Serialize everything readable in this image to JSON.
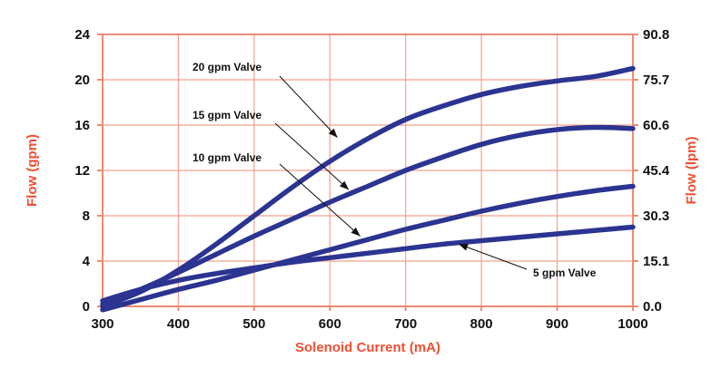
{
  "chart_data": {
    "type": "line",
    "xlabel": "Solenoid Current (mA)",
    "ylabel": "Flow (gpm)",
    "y2label": "Flow (lpm)",
    "xlim": [
      300,
      1000
    ],
    "ylim": [
      0,
      24
    ],
    "x_ticks": [
      "300",
      "400",
      "500",
      "600",
      "700",
      "800",
      "900",
      "1000"
    ],
    "y_ticks": [
      "0",
      "4",
      "8",
      "12",
      "16",
      "20",
      "24"
    ],
    "y2_ticks": [
      "0.0",
      "15.1",
      "30.3",
      "45.4",
      "60.6",
      "75.7",
      "90.8"
    ],
    "grid": true,
    "series": [
      {
        "name": "20 gpm Valve",
        "x": [
          300,
          350,
          400,
          450,
          500,
          550,
          600,
          650,
          700,
          750,
          800,
          850,
          900,
          950,
          1000
        ],
        "y": [
          0,
          1.3,
          3.2,
          5.5,
          8.0,
          10.5,
          12.8,
          14.8,
          16.5,
          17.7,
          18.7,
          19.4,
          19.9,
          20.3,
          21.0
        ]
      },
      {
        "name": "15 gpm Valve",
        "x": [
          300,
          350,
          400,
          450,
          500,
          550,
          600,
          650,
          700,
          750,
          800,
          850,
          900,
          950,
          1000
        ],
        "y": [
          0.2,
          1.5,
          3.0,
          4.6,
          6.2,
          7.7,
          9.2,
          10.6,
          12.0,
          13.2,
          14.3,
          15.1,
          15.6,
          15.8,
          15.7
        ]
      },
      {
        "name": "10 gpm Valve",
        "x": [
          300,
          350,
          400,
          450,
          500,
          550,
          600,
          650,
          700,
          750,
          800,
          850,
          900,
          950,
          1000
        ],
        "y": [
          -0.3,
          0.6,
          1.5,
          2.3,
          3.2,
          4.1,
          5.0,
          5.9,
          6.8,
          7.6,
          8.4,
          9.1,
          9.7,
          10.2,
          10.6
        ]
      },
      {
        "name": "5 gpm Valve",
        "x": [
          300,
          350,
          400,
          450,
          500,
          550,
          600,
          650,
          700,
          750,
          800,
          850,
          900,
          950,
          1000
        ],
        "y": [
          0.5,
          1.5,
          2.3,
          2.9,
          3.4,
          3.9,
          4.3,
          4.7,
          5.1,
          5.5,
          5.8,
          6.1,
          6.4,
          6.7,
          7.0
        ]
      }
    ],
    "annotations": [
      {
        "text": "20 gpm Valve",
        "x": 610,
        "y": 14.9
      },
      {
        "text": "15 gpm Valve",
        "x": 625,
        "y": 10.3
      },
      {
        "text": "10 gpm Valve",
        "x": 640,
        "y": 6.2
      },
      {
        "text": "5 gpm Valve",
        "x": 770,
        "y": 5.5
      }
    ],
    "colors": {
      "series": "#2b3491",
      "grid": "#f4a08e",
      "axis": "#f08a73",
      "axis_title": "#f04e32",
      "text": "#111111"
    }
  }
}
